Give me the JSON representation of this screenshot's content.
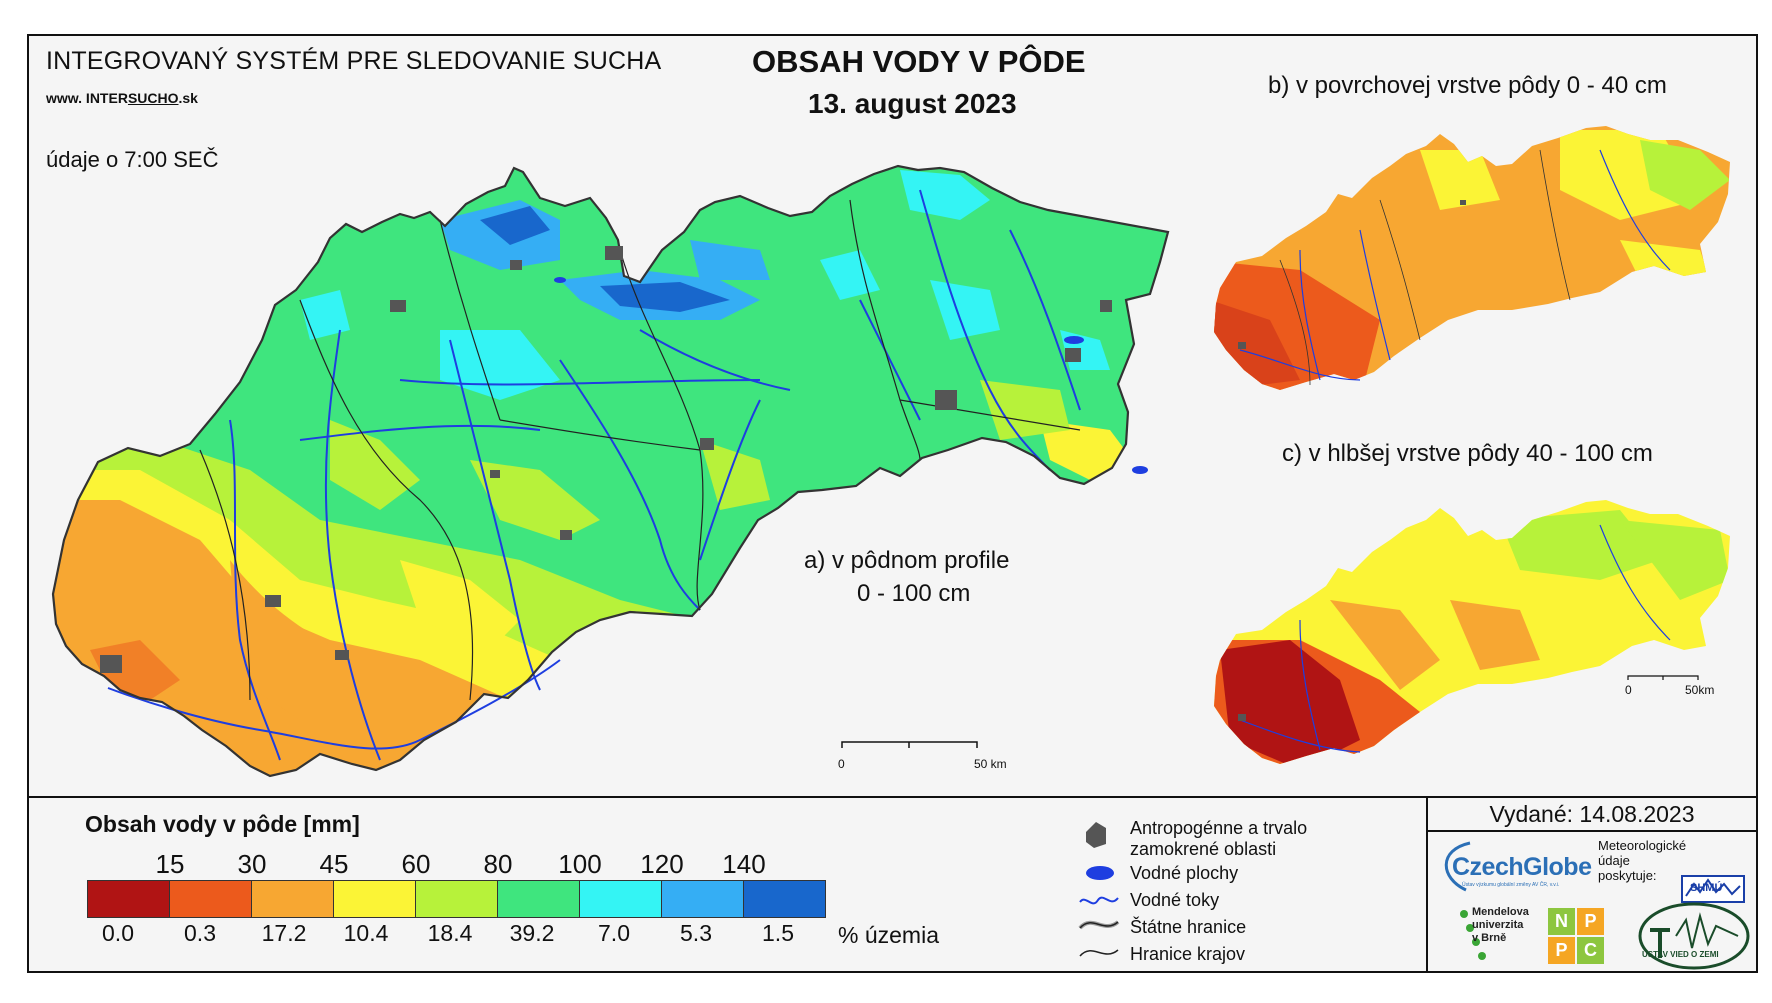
{
  "header": {
    "system_title": "INTEGROVANÝ SYSTÉM PRE SLEDOVANIE SUCHA",
    "website_prefix": "www. INTER",
    "website_underlined": "SUCHO",
    "website_suffix": ".sk",
    "time_note": "údaje o 7:00 SEČ",
    "main_title": "OBSAH VODY V PÔDE",
    "date": "13. august 2023"
  },
  "maps": {
    "a_label_line1": "a) v pôdnom profile",
    "a_label_line2": "0 - 100 cm",
    "b_label": "b) v povrchovej vrstve pôdy 0 - 40 cm",
    "c_label": "c) v hlbšej vrstve pôdy 40 - 100 cm",
    "scale_main_zero": "0",
    "scale_main_end": "50 km",
    "scale_small_zero": "0",
    "scale_small_end": "50km"
  },
  "legend": {
    "title": "Obsah vody v pôde  [mm]",
    "thresholds": [
      "15",
      "30",
      "45",
      "60",
      "80",
      "100",
      "120",
      "140"
    ],
    "classes": [
      {
        "color": "#b01414",
        "percent": "0.0"
      },
      {
        "color": "#ec5a1c",
        "percent": "0.3"
      },
      {
        "color": "#f7a732",
        "percent": "17.2"
      },
      {
        "color": "#fbf436",
        "percent": "10.4"
      },
      {
        "color": "#b7f23a",
        "percent": "18.4"
      },
      {
        "color": "#3fe57e",
        "percent": "39.2"
      },
      {
        "color": "#34f4f4",
        "percent": "7.0"
      },
      {
        "color": "#35aef4",
        "percent": "5.3"
      },
      {
        "color": "#1867cc",
        "percent": "1.5"
      }
    ],
    "percent_unit": "% územia",
    "symbols": [
      {
        "icon": "anthropogenic-area-icon",
        "label": "Antropogénne a trvalo\nzamokrené oblasti"
      },
      {
        "icon": "water-body-icon",
        "label": "Vodné plochy"
      },
      {
        "icon": "river-icon",
        "label": "Vodné toky"
      },
      {
        "icon": "state-border-icon",
        "label": "Štátne hranice"
      },
      {
        "icon": "region-border-icon",
        "label": "Hranice krajov"
      }
    ]
  },
  "credits": {
    "issued": "Vydané: 14.08.2023",
    "czechglobe": "CzechGlobe",
    "czechglobe_sub": "Ústav výzkumu globální změny AV ČR, v.v.i.",
    "meteo_note": "Meteorologické\núdaje\nposkytuje:",
    "shmu": "SHMÚ",
    "mendel": "Mendelova\nuniverzita\nv Brně",
    "npc_letters": [
      "N",
      "P",
      "P",
      "C"
    ],
    "uvz": "ÚSTAV VIED O ZEMI"
  }
}
